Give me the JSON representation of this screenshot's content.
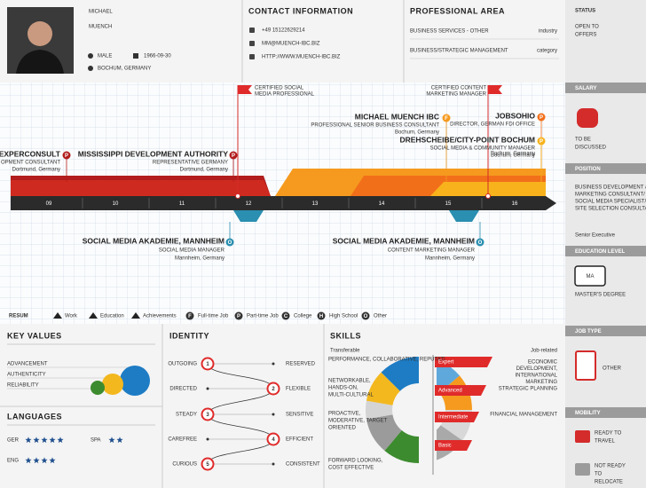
{
  "header": {
    "name": [
      "MICHAEL",
      "MUENCH"
    ],
    "gender": "MALE",
    "birth": "1966-09-30",
    "location": "BOCHUM, GERMANY"
  },
  "contact": {
    "title": "CONTACT INFORMATION",
    "phone": "+49 15122629214",
    "email": "MM@MUENCH-IBC.BIZ",
    "web": "HTTP://WWW.MUENCH-IBC.BIZ"
  },
  "professional": {
    "title": "PROFESSIONAL AREA",
    "rows": [
      [
        "BUSINESS SERVICES - OTHER",
        "industry"
      ],
      [
        "BUSINESS/STRATEGIC MANAGEMENT",
        "category"
      ]
    ]
  },
  "sidebar": {
    "status": {
      "title": "STATUS",
      "lines": [
        "OPEN TO",
        "OFFERS"
      ]
    },
    "salary": {
      "title": "SALARY",
      "lines": [
        "TO BE",
        "DISCUSSED"
      ]
    },
    "position": {
      "title": "POSITION",
      "lines": [
        "BUSINESS DEVELOPMENT &",
        "MARKETING CONSULTANT/",
        "SOCIAL MEDIA SPECIALIST/",
        "SITE SELECTION CONSULTANT"
      ],
      "level": "Senior Executive"
    },
    "education": {
      "title": "EDUCATION LEVEL",
      "badge": "MA",
      "text": "MASTER'S DEGREE"
    },
    "job_type": {
      "title": "JOB TYPE",
      "text": "OTHER"
    },
    "mobility": {
      "title": "MOBILITY",
      "travel": [
        "READY TO",
        "TRAVEL"
      ],
      "relocate": [
        "NOT READY",
        "TO",
        "RELOCATE"
      ]
    }
  },
  "timeline": {
    "years": [
      "09",
      "10",
      "11",
      "12",
      "13",
      "14",
      "15",
      "16"
    ],
    "certificates": [
      [
        "CERTIFIED SOCIAL",
        "MEDIA PROFESSIONAL"
      ],
      [
        "CERTIFIED CONTENT",
        "MARKETING MANAGER"
      ]
    ],
    "work": [
      {
        "title": "EXPERCONSULT",
        "role": "OPMENT CONSULTANT",
        "location": "Dortmund, Germany",
        "icon": "P"
      },
      {
        "title": "MISSISSIPPI DEVELOPMENT AUTHORITY",
        "role": "REPRESENTATIVE GERMANY",
        "location": "Dortmund, Germany",
        "icon": "P"
      },
      {
        "title": "MICHAEL MUENCH IBC",
        "role": "PROFESSIONAL SENIOR BUSINESS CONSULTANT",
        "location": "Bochum, Germany",
        "icon": "F"
      },
      {
        "title": "JOBSOHIO",
        "role": "DIRECTOR, GERMAN FDI OFFICE",
        "location": "Bochum, Germany",
        "icon": "P"
      },
      {
        "title": "DREHSCHEIBE/CITY-POINT BOCHUM",
        "role": "SOCIAL MEDIA & COMMUNITY MANAGER",
        "location": "Bochum, Germany",
        "icon": "P"
      }
    ],
    "education": [
      {
        "title": "SOCIAL MEDIA AKADEMIE, MANNHEIM",
        "role": "SOCIAL MEDIA MANAGER",
        "location": "Mannheim, Germany",
        "icon": "O"
      },
      {
        "title": "SOCIAL MEDIA AKADEMIE, MANNHEIM",
        "role": "CONTENT MARKETING MANAGER",
        "location": "Mannheim, Germany",
        "icon": "O"
      }
    ]
  },
  "legend": {
    "logo": "RESUM",
    "items": [
      "Work",
      "Education",
      "Achievements",
      "Full-time Job",
      "Part-time Job",
      "College",
      "High School",
      "Other"
    ],
    "icons": [
      "F",
      "P",
      "C",
      "H",
      "O"
    ]
  },
  "key_values": {
    "title": "KEY VALUES",
    "items": [
      "ADVANCEMENT",
      "AUTHENTICITY",
      "RELIABILITY"
    ]
  },
  "languages": {
    "title": "LANGUAGES",
    "items": [
      {
        "name": "GER",
        "level": 5
      },
      {
        "name": "SPA",
        "level": 2
      },
      {
        "name": "ENG",
        "level": 4
      }
    ]
  },
  "identity": {
    "title": "IDENTITY",
    "rows": [
      {
        "left": "OUTGOING",
        "right": "RESERVED",
        "rank": 1
      },
      {
        "left": "DIRECTED",
        "right": "FLEXIBLE",
        "rank": 2
      },
      {
        "left": "STEADY",
        "right": "SENSITIVE",
        "rank": 3
      },
      {
        "left": "CAREFREE",
        "right": "EFFICIENT",
        "rank": 4
      },
      {
        "left": "CURIOUS",
        "right": "CONSISTENT",
        "rank": 5
      }
    ]
  },
  "skills": {
    "title": "SKILLS",
    "transferable_label": "Transferable",
    "job_label": "Job-related",
    "transferable": [
      [
        "PERFORMANCE, COLLABORATIVE, REPUTATI"
      ],
      [
        "NETWORKABLE,",
        "HANDS-ON,",
        "MULTI-CULTURAL"
      ],
      [
        "PROACTIVE,",
        "MODERATIVE, TARGET",
        "ORIENTED"
      ],
      [
        "FORWARD LOOKING,",
        "COST EFFECTIVE"
      ]
    ],
    "job": [
      [
        "ECONOMIC",
        "DEVELOPMENT,",
        "INTERNATIONAL",
        "MARKETING",
        "STRATEGIC PLANNING"
      ],
      [
        "FINANCIAL MANAGEMENT"
      ]
    ],
    "levels": [
      "Expert",
      "Advanced",
      "Intermediate",
      "Basic"
    ]
  }
}
